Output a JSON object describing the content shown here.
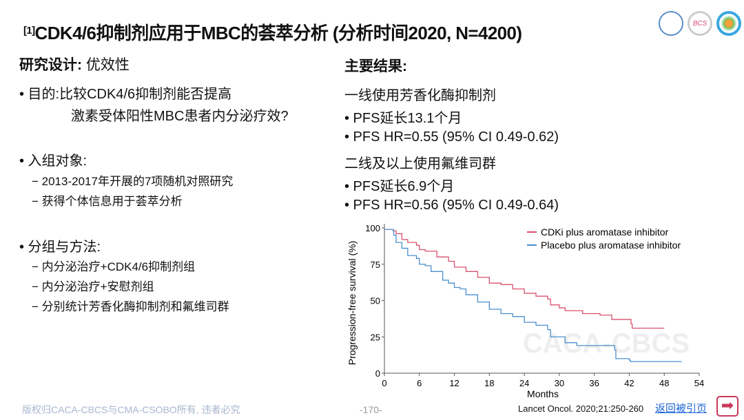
{
  "title": {
    "ref": "[1]",
    "text": "CDK4/6抑制剂应用于MBC的荟萃分析 (分析时间2020, N=4200)"
  },
  "logos": [
    "CACA logo",
    "BCS",
    "CSOBO logo"
  ],
  "left": {
    "heading_bold": "研究设计:",
    "heading_rest": " 优效性",
    "purpose_line1": "• 目的:比较CDK4/6抑制剂能否提高",
    "purpose_line2": "激素受体阳性MBC患者内分泌疗效?",
    "subjects": "• 入组对象:",
    "subjects_items": [
      "− 2013-2017年开展的7项随机对照研究",
      "−   获得个体信息用于荟萃分析"
    ],
    "groups": "• 分组与方法:",
    "groups_items": [
      "− 内分泌治疗+CDK4/6抑制剂组",
      "− 内分泌治疗+安慰剂组",
      "− 分别统计芳香化酶抑制剂和氟维司群"
    ]
  },
  "right": {
    "heading": "主要结果:",
    "lines": [
      "一线使用芳香化酶抑制剂",
      "• PFS延长13.1个月",
      "• PFS HR=0.55 (95% CI 0.49-0.62)",
      "二线及以上使用氟维司群",
      "• PFS延长6.9个月",
      "• PFS HR=0.56 (95% CI 0.49-0.64)"
    ]
  },
  "chart_data": {
    "type": "line",
    "xlabel": "Months",
    "ylabel": "Progression-free survival (%)",
    "xlim": [
      0,
      54
    ],
    "ylim": [
      0,
      100
    ],
    "xticks": [
      0,
      6,
      12,
      18,
      24,
      30,
      36,
      42,
      48,
      54
    ],
    "yticks": [
      0,
      25,
      50,
      75,
      100
    ],
    "legend": "top-right",
    "watermark": "CACA-CBCS",
    "series": [
      {
        "name": "CDKi plus aromatase inhibitor",
        "color": "#d9506e",
        "points": [
          [
            0,
            99
          ],
          [
            1.5,
            98
          ],
          [
            2,
            96
          ],
          [
            3,
            92
          ],
          [
            4,
            90
          ],
          [
            5.5,
            88
          ],
          [
            6,
            85
          ],
          [
            7,
            84
          ],
          [
            9,
            80
          ],
          [
            11,
            77
          ],
          [
            12,
            73
          ],
          [
            14,
            70
          ],
          [
            16,
            66
          ],
          [
            18,
            62
          ],
          [
            20,
            61
          ],
          [
            22,
            58
          ],
          [
            24,
            55
          ],
          [
            26,
            53
          ],
          [
            28,
            51
          ],
          [
            28.5,
            47
          ],
          [
            30,
            45
          ],
          [
            31,
            43
          ],
          [
            34,
            41
          ],
          [
            37,
            40
          ],
          [
            39,
            37
          ],
          [
            42,
            37
          ],
          [
            42.3,
            34
          ],
          [
            42.5,
            31
          ],
          [
            48,
            31
          ]
        ]
      },
      {
        "name": "Placebo plus aromatase inhibitor",
        "color": "#4a8fd0",
        "points": [
          [
            0,
            99
          ],
          [
            1.5,
            98
          ],
          [
            1.6,
            95
          ],
          [
            2,
            90
          ],
          [
            3,
            86
          ],
          [
            4,
            81
          ],
          [
            5.5,
            79
          ],
          [
            6,
            75
          ],
          [
            7,
            74
          ],
          [
            8,
            70
          ],
          [
            10,
            64
          ],
          [
            11,
            62
          ],
          [
            12,
            59
          ],
          [
            13,
            58
          ],
          [
            14,
            54
          ],
          [
            16,
            49
          ],
          [
            18,
            44
          ],
          [
            20,
            41
          ],
          [
            22,
            39
          ],
          [
            24,
            35
          ],
          [
            26,
            33
          ],
          [
            28,
            30
          ],
          [
            28.5,
            25
          ],
          [
            30,
            25
          ],
          [
            31,
            21
          ],
          [
            33,
            19
          ],
          [
            39,
            19
          ],
          [
            39.5,
            16
          ],
          [
            39.7,
            10
          ],
          [
            42,
            9
          ],
          [
            42.2,
            8
          ],
          [
            51,
            8
          ]
        ]
      }
    ]
  },
  "footer": {
    "copyright": "版权归CACA-CBCS与CMA-CSOBO所有, 违者必究",
    "page": "-170-",
    "citation": "Lancet Oncol. 2020;21:250-260",
    "back_link": "返回被引页"
  }
}
